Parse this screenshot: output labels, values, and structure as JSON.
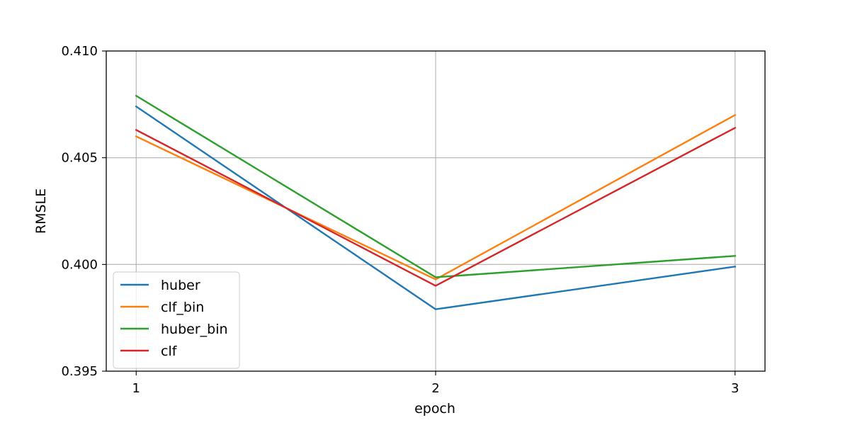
{
  "chart_data": {
    "type": "line",
    "title": "",
    "xlabel": "epoch",
    "ylabel": "RMSLE",
    "x": [
      1,
      2,
      3
    ],
    "x_ticks": [
      1,
      2,
      3
    ],
    "x_tick_labels": [
      "1",
      "2",
      "3"
    ],
    "xlim": [
      0.9,
      3.1
    ],
    "ylim": [
      0.395,
      0.41
    ],
    "y_ticks": [
      0.395,
      0.4,
      0.405,
      0.41
    ],
    "y_tick_labels": [
      "0.395",
      "0.400",
      "0.405",
      "0.410"
    ],
    "grid": true,
    "legend_position": "lower-left",
    "series": [
      {
        "name": "huber",
        "color": "#1f77b4",
        "values": [
          0.4074,
          0.3979,
          0.3999
        ]
      },
      {
        "name": "clf_bin",
        "color": "#ff7f0e",
        "values": [
          0.406,
          0.3993,
          0.407
        ]
      },
      {
        "name": "huber_bin",
        "color": "#2ca02c",
        "values": [
          0.4079,
          0.3994,
          0.4004
        ]
      },
      {
        "name": "clf",
        "color": "#d62728",
        "values": [
          0.4063,
          0.399,
          0.4064
        ]
      }
    ]
  }
}
